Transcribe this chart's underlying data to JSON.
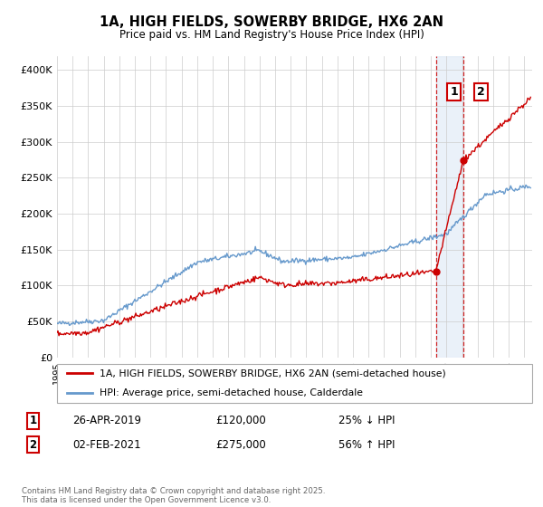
{
  "title_line1": "1A, HIGH FIELDS, SOWERBY BRIDGE, HX6 2AN",
  "title_line2": "Price paid vs. HM Land Registry's House Price Index (HPI)",
  "legend_line1": "1A, HIGH FIELDS, SOWERBY BRIDGE, HX6 2AN (semi-detached house)",
  "legend_line2": "HPI: Average price, semi-detached house, Calderdale",
  "event1_label": "1",
  "event1_date": "26-APR-2019",
  "event1_price": "£120,000",
  "event1_hpi": "25% ↓ HPI",
  "event1_year": 2019.32,
  "event1_value": 120000,
  "event2_label": "2",
  "event2_date": "02-FEB-2021",
  "event2_price": "£275,000",
  "event2_hpi": "56% ↑ HPI",
  "event2_year": 2021.09,
  "event2_value": 275000,
  "footer": "Contains HM Land Registry data © Crown copyright and database right 2025.\nThis data is licensed under the Open Government Licence v3.0.",
  "red_color": "#cc0000",
  "blue_color": "#6699cc",
  "bg_color": "#ffffff",
  "grid_color": "#cccccc",
  "shade_color": "#dde8f5",
  "ylim": [
    0,
    420000
  ],
  "xlim_start": 1995.0,
  "xlim_end": 2025.5
}
